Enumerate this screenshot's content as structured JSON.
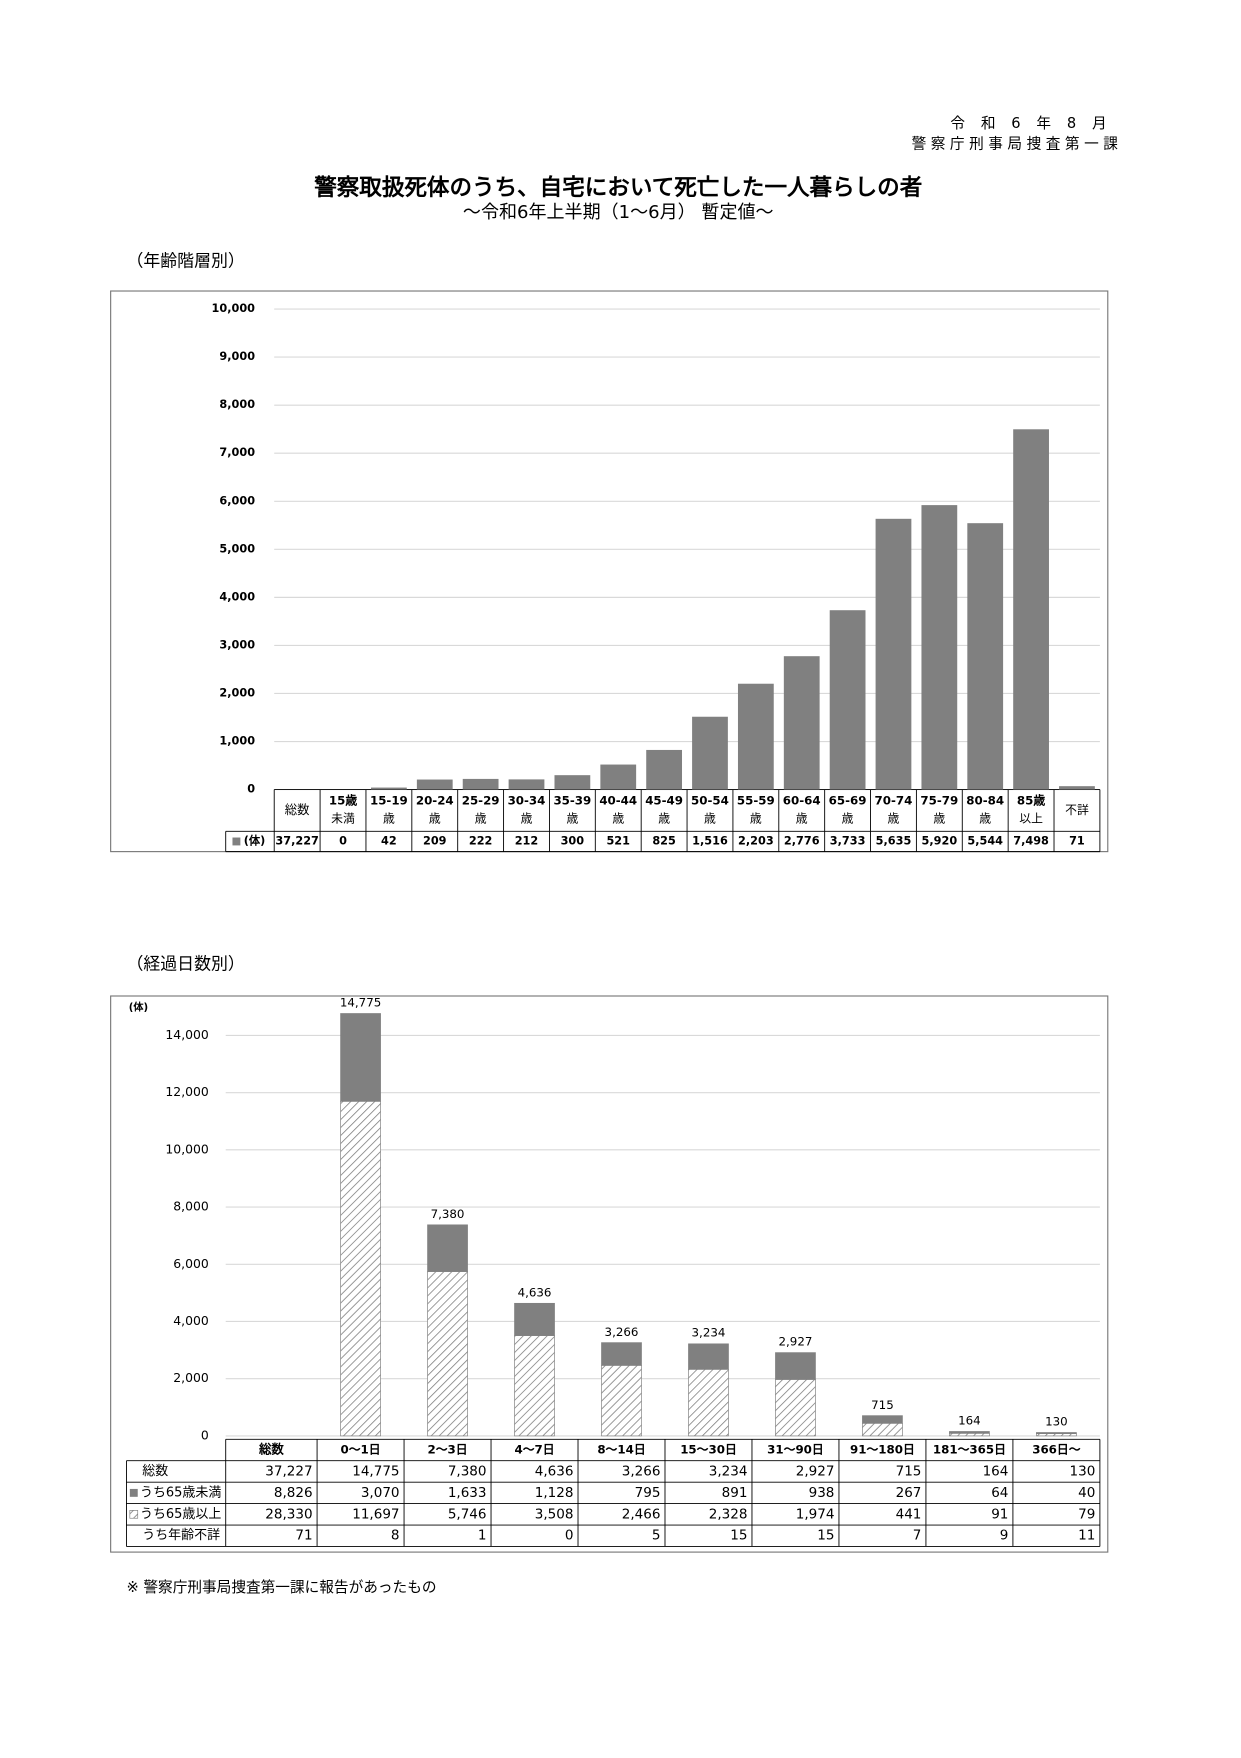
{
  "header": {
    "date": "令和6年8月",
    "dept": "警察庁刑事局捜査第一課",
    "title": "警察取扱死体のうち、自宅において死亡した一人暮らしの者",
    "subtitle": "～令和6年上半期（1～6月） 暫定値～"
  },
  "chart_data": [
    {
      "type": "bar",
      "section": "（年齢階層別）",
      "total_heading": "総数",
      "total": 37227,
      "total_label": "37,227",
      "categories": [
        [
          "15歳",
          "未満"
        ],
        [
          "15-19",
          "歳"
        ],
        [
          "20-24",
          "歳"
        ],
        [
          "25-29",
          "歳"
        ],
        [
          "30-34",
          "歳"
        ],
        [
          "35-39",
          "歳"
        ],
        [
          "40-44",
          "歳"
        ],
        [
          "45-49",
          "歳"
        ],
        [
          "50-54",
          "歳"
        ],
        [
          "55-59",
          "歳"
        ],
        [
          "60-64",
          "歳"
        ],
        [
          "65-69",
          "歳"
        ],
        [
          "70-74",
          "歳"
        ],
        [
          "75-79",
          "歳"
        ],
        [
          "80-84",
          "歳"
        ],
        [
          "85歳",
          "以上"
        ],
        [
          "不詳"
        ]
      ],
      "series": [
        {
          "name": "(体)",
          "color": "#808080",
          "values": [
            0,
            42,
            209,
            222,
            212,
            300,
            521,
            825,
            1516,
            2203,
            2776,
            3733,
            5635,
            5920,
            5544,
            7498,
            71
          ],
          "value_labels": [
            "0",
            "42",
            "209",
            "222",
            "212",
            "300",
            "521",
            "825",
            "1,516",
            "2,203",
            "2,776",
            "3,733",
            "5,635",
            "5,920",
            "5,544",
            "7,498",
            "71"
          ]
        }
      ],
      "ylim": [
        0,
        10000
      ],
      "yticks": [
        0,
        {
          "value": 1000,
          "label": "1,000"
        },
        {
          "value": 2000,
          "label": "2,000"
        },
        {
          "value": 3000,
          "label": "3,000"
        },
        {
          "value": 4000,
          "label": "4,000"
        },
        {
          "value": 5000,
          "label": "5,000"
        },
        {
          "value": 6000,
          "label": "6,000"
        },
        {
          "value": 7000,
          "label": "7,000"
        },
        {
          "value": 8000,
          "label": "8,000"
        },
        {
          "value": 9000,
          "label": "9,000"
        },
        {
          "value": 10000,
          "label": "10,000"
        }
      ],
      "grid": true
    },
    {
      "type": "stacked_bar",
      "section": "（経過日数別）",
      "y_unit": "(体)",
      "total_heading": "総数",
      "categories": [
        "0～1日",
        "2～3日",
        "4～7日",
        "8～14日",
        "15～30日",
        "31～90日",
        "91～180日",
        "181～365日",
        "366日～"
      ],
      "totals": {
        "name": "総数",
        "total": 37227,
        "total_label": "37,227",
        "values": [
          14775,
          7380,
          4636,
          3266,
          3234,
          2927,
          715,
          164,
          130
        ],
        "value_labels": [
          "14,775",
          "7,380",
          "4,636",
          "3,266",
          "3,234",
          "2,927",
          "715",
          "164",
          "130"
        ]
      },
      "series": [
        {
          "name": "うち65歳未満",
          "color": "#808080",
          "total": 8826,
          "total_label": "8,826",
          "values": [
            3070,
            1633,
            1128,
            795,
            891,
            938,
            267,
            64,
            40
          ],
          "value_labels": [
            "3,070",
            "1,633",
            "1,128",
            "795",
            "891",
            "938",
            "267",
            "64",
            "40"
          ]
        },
        {
          "name": "うち65歳以上",
          "color": "#808080",
          "pattern": "hatch",
          "total": 28330,
          "total_label": "28,330",
          "values": [
            11697,
            5746,
            3508,
            2466,
            2328,
            1974,
            441,
            91,
            79
          ],
          "value_labels": [
            "11,697",
            "5,746",
            "3,508",
            "2,466",
            "2,328",
            "1,974",
            "441",
            "91",
            "79"
          ]
        },
        {
          "name": "うち年齢不詳",
          "total": 71,
          "values": [
            8,
            1,
            0,
            5,
            15,
            15,
            7,
            9,
            11
          ]
        }
      ],
      "ylim": [
        0,
        15000
      ],
      "yticks": [
        0,
        {
          "value": 2000,
          "label": "2,000"
        },
        {
          "value": 4000,
          "label": "4,000"
        },
        {
          "value": 6000,
          "label": "6,000"
        },
        {
          "value": 8000,
          "label": "8,000"
        },
        {
          "value": 10000,
          "label": "10,000"
        },
        {
          "value": 12000,
          "label": "12,000"
        },
        {
          "value": 14000,
          "label": "14,000"
        }
      ],
      "grid": true
    }
  ],
  "note": "※ 警察庁刑事局捜査第一課に報告があったもの"
}
